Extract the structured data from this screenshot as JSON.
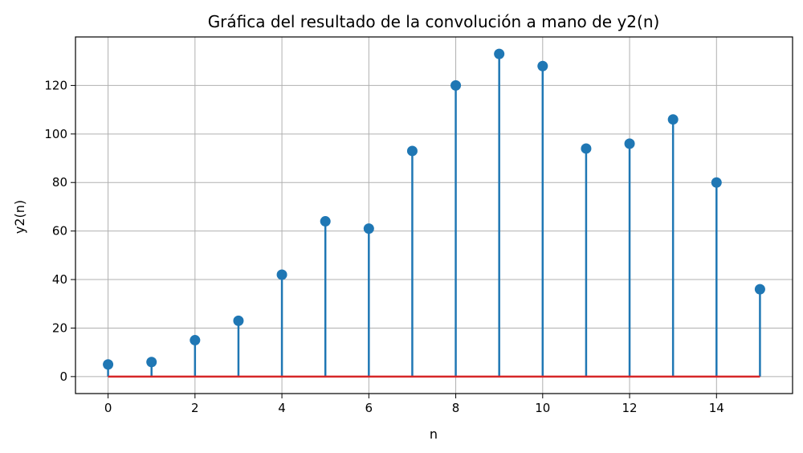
{
  "chart_data": {
    "type": "stem",
    "title": "Gráfica del resultado de la convolución a mano de y2(n)",
    "xlabel": "n",
    "ylabel": "y2(n)",
    "x": [
      0,
      1,
      2,
      3,
      4,
      5,
      6,
      7,
      8,
      9,
      10,
      11,
      12,
      13,
      14,
      15
    ],
    "y": [
      5,
      6,
      15,
      23,
      42,
      64,
      61,
      93,
      120,
      133,
      128,
      94,
      96,
      106,
      80,
      36
    ],
    "xlim": [
      -0.75,
      15.75
    ],
    "ylim": [
      -7,
      140
    ],
    "xticks": [
      "0",
      "2",
      "4",
      "6",
      "8",
      "10",
      "12",
      "14"
    ],
    "yticks": [
      "0",
      "20",
      "40",
      "60",
      "80",
      "100",
      "120"
    ],
    "grid": true,
    "colors": {
      "stem": "#1f77b4",
      "marker": "#1f77b4",
      "baseline": "#d62728",
      "grid": "#b0b0b0"
    }
  }
}
